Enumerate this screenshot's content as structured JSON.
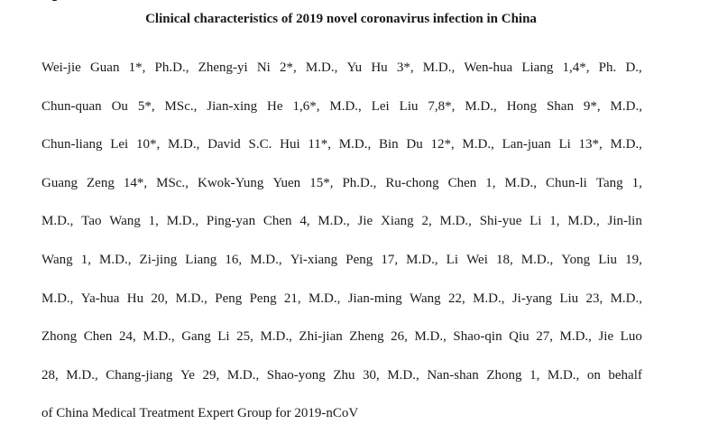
{
  "document": {
    "title": "Clinical characteristics of 2019 novel coronavirus infection in China",
    "author_lines": [
      "Wei-jie Guan 1*, Ph.D., Zheng-yi Ni 2*, M.D., Yu Hu 3*, M.D., Wen-hua Liang 1,4*, Ph. D.,",
      "Chun-quan Ou 5*, MSc., Jian-xing He 1,6*, M.D., Lei Liu 7,8*, M.D., Hong Shan 9*, M.D.,",
      "Chun-liang Lei 10*, M.D., David S.C. Hui 11*, M.D., Bin Du 12*, M.D., Lan-juan Li 13*, M.D.,",
      "Guang Zeng 14*, MSc., Kwok-Yung Yuen 15*, Ph.D., Ru-chong Chen 1, M.D., Chun-li Tang 1,",
      "M.D., Tao Wang 1, M.D., Ping-yan Chen 4, M.D., Jie Xiang 2, M.D., Shi-yue Li 1, M.D., Jin-lin",
      "Wang 1, M.D., Zi-jing Liang 16, M.D., Yi-xiang Peng 17, M.D., Li Wei 18, M.D., Yong Liu 19,",
      "M.D., Ya-hua Hu 20, M.D., Peng Peng 21, M.D., Jian-ming Wang 22, M.D., Ji-yang Liu 23, M.D.,",
      "Zhong Chen 24, M.D., Gang Li 25, M.D., Zhi-jian Zheng 26, M.D., Shao-qin Qiu 27, M.D., Jie Luo",
      "28, M.D., Chang-jiang Ye 29, M.D., Shao-yong Zhu 30, M.D., Nan-shan Zhong 1, M.D., on behalf",
      "of China Medical Treatment Expert Group for 2019-nCoV"
    ]
  }
}
